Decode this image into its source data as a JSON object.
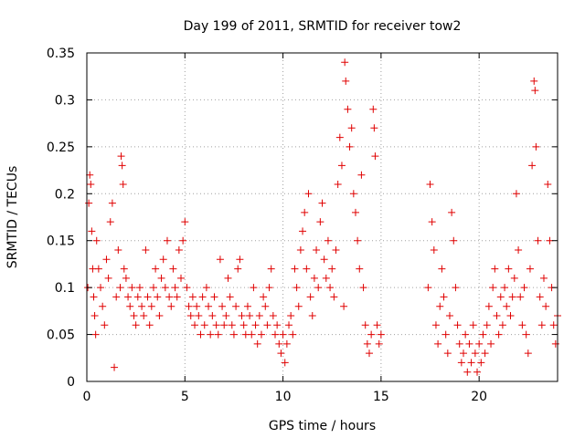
{
  "chart_data": {
    "type": "scatter",
    "title": "Day 199 of 2011, SRMTID for receiver tow2",
    "xlabel": "GPS time / hours",
    "ylabel": "SRMTID / TECUs",
    "xlim": [
      0,
      24
    ],
    "ylim": [
      0,
      0.35
    ],
    "x_ticks": [
      0,
      5,
      10,
      15,
      20
    ],
    "x_tick_labels": [
      "0",
      "5",
      "10",
      "15",
      "20"
    ],
    "y_ticks": [
      0,
      0.05,
      0.1,
      0.15,
      0.2,
      0.25,
      0.3,
      0.35
    ],
    "y_tick_labels": [
      "0",
      "0.05",
      "0.1",
      "0.15",
      "0.2",
      "0.25",
      "0.3",
      "0.35"
    ],
    "grid": true,
    "marker": "+",
    "marker_color": "#e00000",
    "series": [
      {
        "name": "SRMTID",
        "points": [
          [
            0.05,
            0.1
          ],
          [
            0.1,
            0.19
          ],
          [
            0.15,
            0.22
          ],
          [
            0.2,
            0.21
          ],
          [
            0.25,
            0.16
          ],
          [
            0.3,
            0.12
          ],
          [
            0.35,
            0.09
          ],
          [
            0.4,
            0.07
          ],
          [
            0.45,
            0.05
          ],
          [
            0.5,
            0.15
          ],
          [
            0.6,
            0.12
          ],
          [
            0.7,
            0.1
          ],
          [
            0.8,
            0.08
          ],
          [
            0.9,
            0.06
          ],
          [
            1.0,
            0.13
          ],
          [
            1.1,
            0.11
          ],
          [
            1.2,
            0.17
          ],
          [
            1.3,
            0.19
          ],
          [
            1.4,
            0.015
          ],
          [
            1.5,
            0.09
          ],
          [
            1.6,
            0.14
          ],
          [
            1.7,
            0.1
          ],
          [
            1.75,
            0.24
          ],
          [
            1.8,
            0.23
          ],
          [
            1.85,
            0.21
          ],
          [
            1.9,
            0.12
          ],
          [
            2.0,
            0.11
          ],
          [
            2.1,
            0.09
          ],
          [
            2.2,
            0.08
          ],
          [
            2.3,
            0.1
          ],
          [
            2.4,
            0.07
          ],
          [
            2.5,
            0.06
          ],
          [
            2.6,
            0.09
          ],
          [
            2.7,
            0.1
          ],
          [
            2.8,
            0.08
          ],
          [
            2.9,
            0.07
          ],
          [
            3.0,
            0.14
          ],
          [
            3.1,
            0.09
          ],
          [
            3.2,
            0.06
          ],
          [
            3.3,
            0.08
          ],
          [
            3.4,
            0.1
          ],
          [
            3.5,
            0.12
          ],
          [
            3.6,
            0.09
          ],
          [
            3.7,
            0.07
          ],
          [
            3.8,
            0.11
          ],
          [
            3.9,
            0.13
          ],
          [
            4.0,
            0.1
          ],
          [
            4.1,
            0.15
          ],
          [
            4.2,
            0.09
          ],
          [
            4.3,
            0.08
          ],
          [
            4.4,
            0.12
          ],
          [
            4.5,
            0.1
          ],
          [
            4.6,
            0.09
          ],
          [
            4.7,
            0.14
          ],
          [
            4.8,
            0.11
          ],
          [
            4.9,
            0.15
          ],
          [
            5.0,
            0.17
          ],
          [
            5.1,
            0.1
          ],
          [
            5.2,
            0.08
          ],
          [
            5.3,
            0.07
          ],
          [
            5.4,
            0.09
          ],
          [
            5.5,
            0.06
          ],
          [
            5.6,
            0.08
          ],
          [
            5.7,
            0.07
          ],
          [
            5.8,
            0.05
          ],
          [
            5.9,
            0.09
          ],
          [
            6.0,
            0.06
          ],
          [
            6.1,
            0.1
          ],
          [
            6.2,
            0.08
          ],
          [
            6.3,
            0.05
          ],
          [
            6.4,
            0.07
          ],
          [
            6.5,
            0.09
          ],
          [
            6.6,
            0.06
          ],
          [
            6.7,
            0.05
          ],
          [
            6.8,
            0.13
          ],
          [
            6.9,
            0.08
          ],
          [
            7.0,
            0.06
          ],
          [
            7.1,
            0.07
          ],
          [
            7.2,
            0.11
          ],
          [
            7.3,
            0.09
          ],
          [
            7.4,
            0.06
          ],
          [
            7.5,
            0.05
          ],
          [
            7.6,
            0.08
          ],
          [
            7.7,
            0.12
          ],
          [
            7.8,
            0.13
          ],
          [
            7.9,
            0.07
          ],
          [
            8.0,
            0.06
          ],
          [
            8.1,
            0.05
          ],
          [
            8.2,
            0.08
          ],
          [
            8.3,
            0.07
          ],
          [
            8.4,
            0.05
          ],
          [
            8.5,
            0.1
          ],
          [
            8.6,
            0.06
          ],
          [
            8.7,
            0.04
          ],
          [
            8.8,
            0.07
          ],
          [
            8.9,
            0.05
          ],
          [
            9.0,
            0.09
          ],
          [
            9.1,
            0.08
          ],
          [
            9.2,
            0.06
          ],
          [
            9.3,
            0.1
          ],
          [
            9.4,
            0.12
          ],
          [
            9.5,
            0.07
          ],
          [
            9.6,
            0.05
          ],
          [
            9.7,
            0.06
          ],
          [
            9.8,
            0.04
          ],
          [
            9.9,
            0.03
          ],
          [
            10.0,
            0.05
          ],
          [
            10.1,
            0.02
          ],
          [
            10.2,
            0.04
          ],
          [
            10.3,
            0.06
          ],
          [
            10.4,
            0.07
          ],
          [
            10.5,
            0.05
          ],
          [
            10.6,
            0.12
          ],
          [
            10.7,
            0.1
          ],
          [
            10.8,
            0.08
          ],
          [
            10.9,
            0.14
          ],
          [
            11.0,
            0.16
          ],
          [
            11.1,
            0.18
          ],
          [
            11.2,
            0.12
          ],
          [
            11.3,
            0.2
          ],
          [
            11.4,
            0.09
          ],
          [
            11.5,
            0.07
          ],
          [
            11.6,
            0.11
          ],
          [
            11.7,
            0.14
          ],
          [
            11.8,
            0.1
          ],
          [
            11.9,
            0.17
          ],
          [
            12.0,
            0.19
          ],
          [
            12.1,
            0.13
          ],
          [
            12.2,
            0.11
          ],
          [
            12.3,
            0.15
          ],
          [
            12.4,
            0.1
          ],
          [
            12.5,
            0.12
          ],
          [
            12.6,
            0.09
          ],
          [
            12.7,
            0.14
          ],
          [
            12.8,
            0.21
          ],
          [
            12.9,
            0.26
          ],
          [
            13.0,
            0.23
          ],
          [
            13.1,
            0.08
          ],
          [
            13.15,
            0.34
          ],
          [
            13.2,
            0.32
          ],
          [
            13.3,
            0.29
          ],
          [
            13.4,
            0.25
          ],
          [
            13.5,
            0.27
          ],
          [
            13.6,
            0.2
          ],
          [
            13.7,
            0.18
          ],
          [
            13.8,
            0.15
          ],
          [
            13.9,
            0.12
          ],
          [
            14.0,
            0.22
          ],
          [
            14.1,
            0.1
          ],
          [
            14.2,
            0.06
          ],
          [
            14.3,
            0.04
          ],
          [
            14.4,
            0.03
          ],
          [
            14.5,
            0.05
          ],
          [
            14.6,
            0.29
          ],
          [
            14.65,
            0.27
          ],
          [
            14.7,
            0.24
          ],
          [
            14.8,
            0.06
          ],
          [
            14.9,
            0.04
          ],
          [
            15.0,
            0.05
          ],
          [
            17.4,
            0.1
          ],
          [
            17.5,
            0.21
          ],
          [
            17.6,
            0.17
          ],
          [
            17.7,
            0.14
          ],
          [
            17.8,
            0.06
          ],
          [
            17.9,
            0.04
          ],
          [
            18.0,
            0.08
          ],
          [
            18.1,
            0.12
          ],
          [
            18.2,
            0.09
          ],
          [
            18.3,
            0.05
          ],
          [
            18.4,
            0.03
          ],
          [
            18.5,
            0.07
          ],
          [
            18.6,
            0.18
          ],
          [
            18.7,
            0.15
          ],
          [
            18.8,
            0.1
          ],
          [
            18.9,
            0.06
          ],
          [
            19.0,
            0.04
          ],
          [
            19.1,
            0.02
          ],
          [
            19.2,
            0.03
          ],
          [
            19.3,
            0.05
          ],
          [
            19.4,
            0.01
          ],
          [
            19.5,
            0.04
          ],
          [
            19.6,
            0.02
          ],
          [
            19.7,
            0.06
          ],
          [
            19.8,
            0.03
          ],
          [
            19.9,
            0.01
          ],
          [
            20.0,
            0.04
          ],
          [
            20.1,
            0.02
          ],
          [
            20.2,
            0.05
          ],
          [
            20.3,
            0.03
          ],
          [
            20.4,
            0.06
          ],
          [
            20.5,
            0.08
          ],
          [
            20.6,
            0.04
          ],
          [
            20.7,
            0.1
          ],
          [
            20.8,
            0.12
          ],
          [
            20.9,
            0.07
          ],
          [
            21.0,
            0.05
          ],
          [
            21.1,
            0.09
          ],
          [
            21.2,
            0.06
          ],
          [
            21.3,
            0.1
          ],
          [
            21.4,
            0.08
          ],
          [
            21.5,
            0.12
          ],
          [
            21.6,
            0.07
          ],
          [
            21.7,
            0.09
          ],
          [
            21.8,
            0.11
          ],
          [
            21.9,
            0.2
          ],
          [
            22.0,
            0.14
          ],
          [
            22.1,
            0.09
          ],
          [
            22.2,
            0.06
          ],
          [
            22.3,
            0.1
          ],
          [
            22.4,
            0.05
          ],
          [
            22.5,
            0.03
          ],
          [
            22.6,
            0.12
          ],
          [
            22.7,
            0.23
          ],
          [
            22.8,
            0.32
          ],
          [
            22.85,
            0.31
          ],
          [
            22.9,
            0.25
          ],
          [
            23.0,
            0.15
          ],
          [
            23.1,
            0.09
          ],
          [
            23.2,
            0.06
          ],
          [
            23.3,
            0.11
          ],
          [
            23.4,
            0.08
          ],
          [
            23.5,
            0.21
          ],
          [
            23.6,
            0.15
          ],
          [
            23.7,
            0.1
          ],
          [
            23.8,
            0.06
          ],
          [
            23.9,
            0.04
          ],
          [
            24.0,
            0.07
          ]
        ]
      }
    ]
  }
}
